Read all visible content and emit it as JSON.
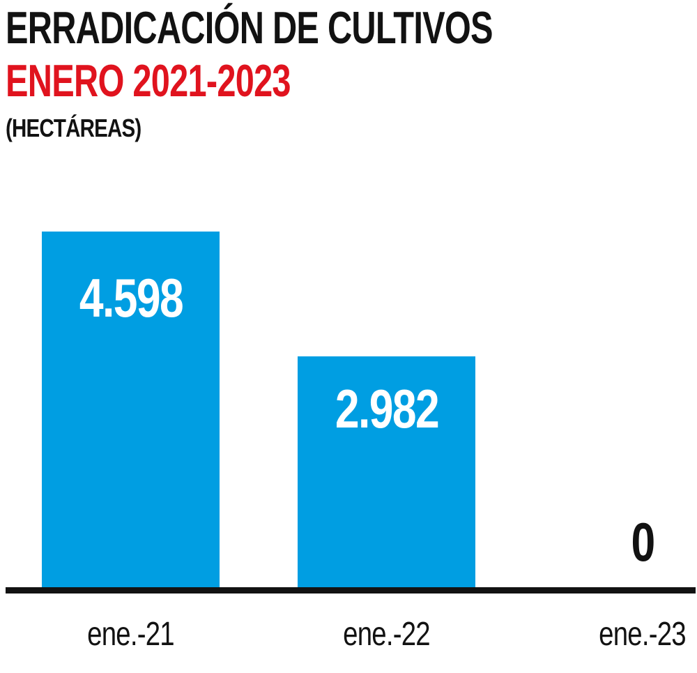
{
  "header": {
    "title": "ERRADICACIÓN DE CULTIVOS",
    "subtitle": "ENERO 2021-2023",
    "unit_label": "(HECTÁREAS)"
  },
  "colors": {
    "bar": "#009ee2",
    "subtitle": "#e0131e",
    "text": "#121212",
    "value_label_on_bar": "#ffffff",
    "value_label_zero": "#121212",
    "axis": "#121212"
  },
  "chart_data": {
    "type": "bar",
    "title": "ERRADICACIÓN DE CULTIVOS — ENERO 2021-2023",
    "categories": [
      "ene.-21",
      "ene.-22",
      "ene.-23"
    ],
    "values": [
      4598,
      2982,
      0
    ],
    "value_labels": [
      "4.598",
      "2.982",
      "0"
    ],
    "xlabel": "",
    "ylabel": "Hectáreas",
    "ylim": [
      0,
      4598
    ],
    "grid": false,
    "legend": false,
    "bar_color": "#009ee2",
    "value_label_position": "inside-top, above-axis when zero"
  }
}
